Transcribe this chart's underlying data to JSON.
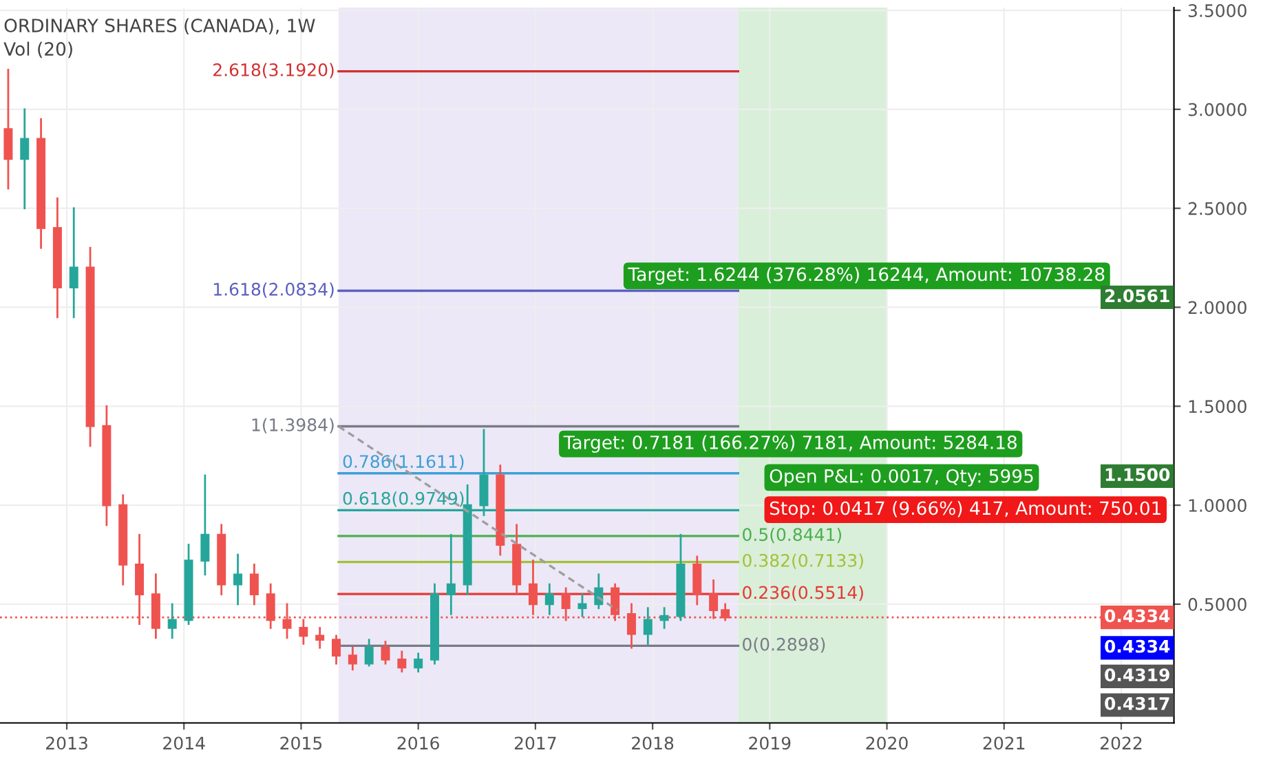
{
  "chart_data": {
    "type": "candlestick",
    "title": "ORDINARY SHARES (CANADA), 1W",
    "x": [
      2012.5,
      2012.64,
      2012.78,
      2012.92,
      2013.06,
      2013.2,
      2013.34,
      2013.48,
      2013.62,
      2013.76,
      2013.9,
      2014.04,
      2014.18,
      2014.32,
      2014.46,
      2014.6,
      2014.74,
      2014.88,
      2015.02,
      2015.16,
      2015.3,
      2015.44,
      2015.58,
      2015.72,
      2015.86,
      2016.0,
      2016.14,
      2016.28,
      2016.42,
      2016.56,
      2016.7,
      2016.84,
      2016.98,
      2017.12,
      2017.26,
      2017.4,
      2017.54,
      2017.68,
      2017.82,
      2017.96,
      2018.1,
      2018.24,
      2018.38,
      2018.52,
      2018.62
    ],
    "ohlc": [
      [
        2.9,
        3.2,
        2.6,
        2.75
      ],
      [
        2.75,
        3.0,
        2.5,
        2.85
      ],
      [
        2.85,
        2.95,
        2.3,
        2.4
      ],
      [
        2.4,
        2.55,
        1.95,
        2.1
      ],
      [
        2.1,
        2.5,
        1.95,
        2.2
      ],
      [
        2.2,
        2.3,
        1.3,
        1.4
      ],
      [
        1.4,
        1.5,
        0.9,
        1.0
      ],
      [
        1.0,
        1.05,
        0.6,
        0.7
      ],
      [
        0.7,
        0.85,
        0.4,
        0.55
      ],
      [
        0.55,
        0.65,
        0.33,
        0.38
      ],
      [
        0.38,
        0.5,
        0.33,
        0.42
      ],
      [
        0.42,
        0.8,
        0.4,
        0.72
      ],
      [
        0.72,
        1.15,
        0.65,
        0.85
      ],
      [
        0.85,
        0.9,
        0.55,
        0.6
      ],
      [
        0.6,
        0.75,
        0.5,
        0.65
      ],
      [
        0.65,
        0.7,
        0.5,
        0.55
      ],
      [
        0.55,
        0.6,
        0.38,
        0.42
      ],
      [
        0.42,
        0.5,
        0.33,
        0.38
      ],
      [
        0.38,
        0.42,
        0.3,
        0.34
      ],
      [
        0.34,
        0.38,
        0.28,
        0.32
      ],
      [
        0.32,
        0.34,
        0.2,
        0.24
      ],
      [
        0.24,
        0.28,
        0.17,
        0.2
      ],
      [
        0.2,
        0.32,
        0.19,
        0.28
      ],
      [
        0.28,
        0.31,
        0.2,
        0.22
      ],
      [
        0.22,
        0.26,
        0.16,
        0.18
      ],
      [
        0.18,
        0.25,
        0.16,
        0.22
      ],
      [
        0.22,
        0.6,
        0.2,
        0.55
      ],
      [
        0.55,
        0.85,
        0.45,
        0.6
      ],
      [
        0.6,
        1.1,
        0.55,
        1.0
      ],
      [
        1.0,
        1.38,
        0.95,
        1.15
      ],
      [
        1.15,
        1.2,
        0.75,
        0.8
      ],
      [
        0.8,
        0.9,
        0.55,
        0.6
      ],
      [
        0.6,
        0.72,
        0.45,
        0.5
      ],
      [
        0.5,
        0.6,
        0.45,
        0.55
      ],
      [
        0.55,
        0.58,
        0.42,
        0.48
      ],
      [
        0.48,
        0.55,
        0.44,
        0.5
      ],
      [
        0.5,
        0.65,
        0.48,
        0.58
      ],
      [
        0.58,
        0.6,
        0.42,
        0.45
      ],
      [
        0.45,
        0.5,
        0.28,
        0.35
      ],
      [
        0.35,
        0.48,
        0.3,
        0.42
      ],
      [
        0.42,
        0.48,
        0.38,
        0.44
      ],
      [
        0.44,
        0.85,
        0.42,
        0.7
      ],
      [
        0.7,
        0.74,
        0.5,
        0.55
      ],
      [
        0.55,
        0.62,
        0.43,
        0.47
      ],
      [
        0.47,
        0.5,
        0.42,
        0.4334
      ]
    ],
    "colors": [
      "#ef5350",
      "#26a69a",
      "#ef5350",
      "#ef5350",
      "#26a69a",
      "#ef5350",
      "#ef5350",
      "#ef5350",
      "#ef5350",
      "#ef5350",
      "#26a69a",
      "#26a69a",
      "#26a69a",
      "#ef5350",
      "#26a69a",
      "#ef5350",
      "#ef5350",
      "#ef5350",
      "#ef5350",
      "#ef5350",
      "#ef5350",
      "#ef5350",
      "#26a69a",
      "#ef5350",
      "#ef5350",
      "#26a69a",
      "#26a69a",
      "#26a69a",
      "#26a69a",
      "#26a69a",
      "#ef5350",
      "#ef5350",
      "#ef5350",
      "#26a69a",
      "#ef5350",
      "#26a69a",
      "#26a69a",
      "#ef5350",
      "#ef5350",
      "#26a69a",
      "#26a69a",
      "#26a69a",
      "#ef5350",
      "#ef5350",
      "#ef5350"
    ],
    "series": [
      {
        "type": "line",
        "name": "2.618(3.1920)",
        "color": "#d32f2f",
        "x": [
          2015.32,
          2018.73
        ],
        "values": [
          3.192,
          3.192
        ]
      },
      {
        "type": "line",
        "name": "1.618(2.0834)",
        "color": "#5c5fbf",
        "x": [
          2015.32,
          2018.73
        ],
        "values": [
          2.0834,
          2.0834
        ]
      },
      {
        "type": "line",
        "name": "1(1.3984)",
        "color": "#787b86",
        "x": [
          2015.32,
          2018.73
        ],
        "values": [
          1.3984,
          1.3984
        ]
      },
      {
        "type": "line",
        "name": "0.786(1.1611)",
        "color": "#3d9fd6",
        "x": [
          2015.32,
          2018.73
        ],
        "values": [
          1.1611,
          1.1611
        ]
      },
      {
        "type": "line",
        "name": "0.618(0.9749)",
        "color": "#26a69a",
        "x": [
          2015.32,
          2018.73
        ],
        "values": [
          0.9749,
          0.9749
        ]
      },
      {
        "type": "line",
        "name": "0.5(0.8441)",
        "color": "#4caf50",
        "x": [
          2015.32,
          2018.73
        ],
        "values": [
          0.8441,
          0.8441
        ]
      },
      {
        "type": "line",
        "name": "0.382(0.7133)",
        "color": "#a3c037",
        "x": [
          2015.32,
          2018.73
        ],
        "values": [
          0.7133,
          0.7133
        ]
      },
      {
        "type": "line",
        "name": "0.236(0.5514)",
        "color": "#e53935",
        "x": [
          2015.32,
          2018.73
        ],
        "values": [
          0.5514,
          0.5514
        ]
      },
      {
        "type": "line",
        "name": "0(0.2898)",
        "color": "#787b86",
        "x": [
          2015.32,
          2018.73
        ],
        "values": [
          0.2898,
          0.2898
        ]
      },
      {
        "type": "line",
        "color": "#9e9e9e",
        "line_style": "dashed",
        "x": [
          2015.32,
          2017.7
        ],
        "values": [
          1.3984,
          0.47
        ]
      }
    ],
    "annotations": [
      "Vol (20)",
      "Target: 1.6244 (376.28%) 16244, Amount: 10738.28",
      "Target: 0.7181 (166.27%) 7181, Amount: 5284.18",
      "Open P&L: 0.0017, Qty: 5995",
      "Stop: 0.0417 (9.66%) 417, Amount: 750.01",
      "2.0561",
      "1.1500",
      "0.4334",
      "0.4319",
      "0.4317"
    ],
    "bands": [
      {
        "axis": "x",
        "from": 2015.32,
        "to": 2018.73,
        "color": "#ece8f7"
      },
      {
        "axis": "x",
        "from": 2018.73,
        "to": 2020.0,
        "color": "#d9efd9"
      }
    ],
    "ref_lines": [
      {
        "axis": "y",
        "value": 0.4334,
        "label": "0.4334",
        "color": "#ef5350",
        "line_style": "dotted"
      }
    ],
    "xlim": [
      2012.43,
      2022.45
    ],
    "xticks": [
      2013,
      2014,
      2015,
      2016,
      2017,
      2018,
      2019,
      2020,
      2021,
      2022
    ],
    "ylim": [
      -0.1,
      3.514
    ],
    "yticks": [
      {
        "value": 0.5,
        "label": "0.5000"
      },
      {
        "value": 1.0,
        "label": "1.0000"
      },
      {
        "value": 1.5,
        "label": "1.5000"
      },
      {
        "value": 2.0,
        "label": "2.0000"
      },
      {
        "value": 2.5,
        "label": "2.5000"
      },
      {
        "value": 3.0,
        "label": "3.0000"
      },
      {
        "value": 3.5,
        "label": "3.5000"
      }
    ],
    "grid": true
  }
}
